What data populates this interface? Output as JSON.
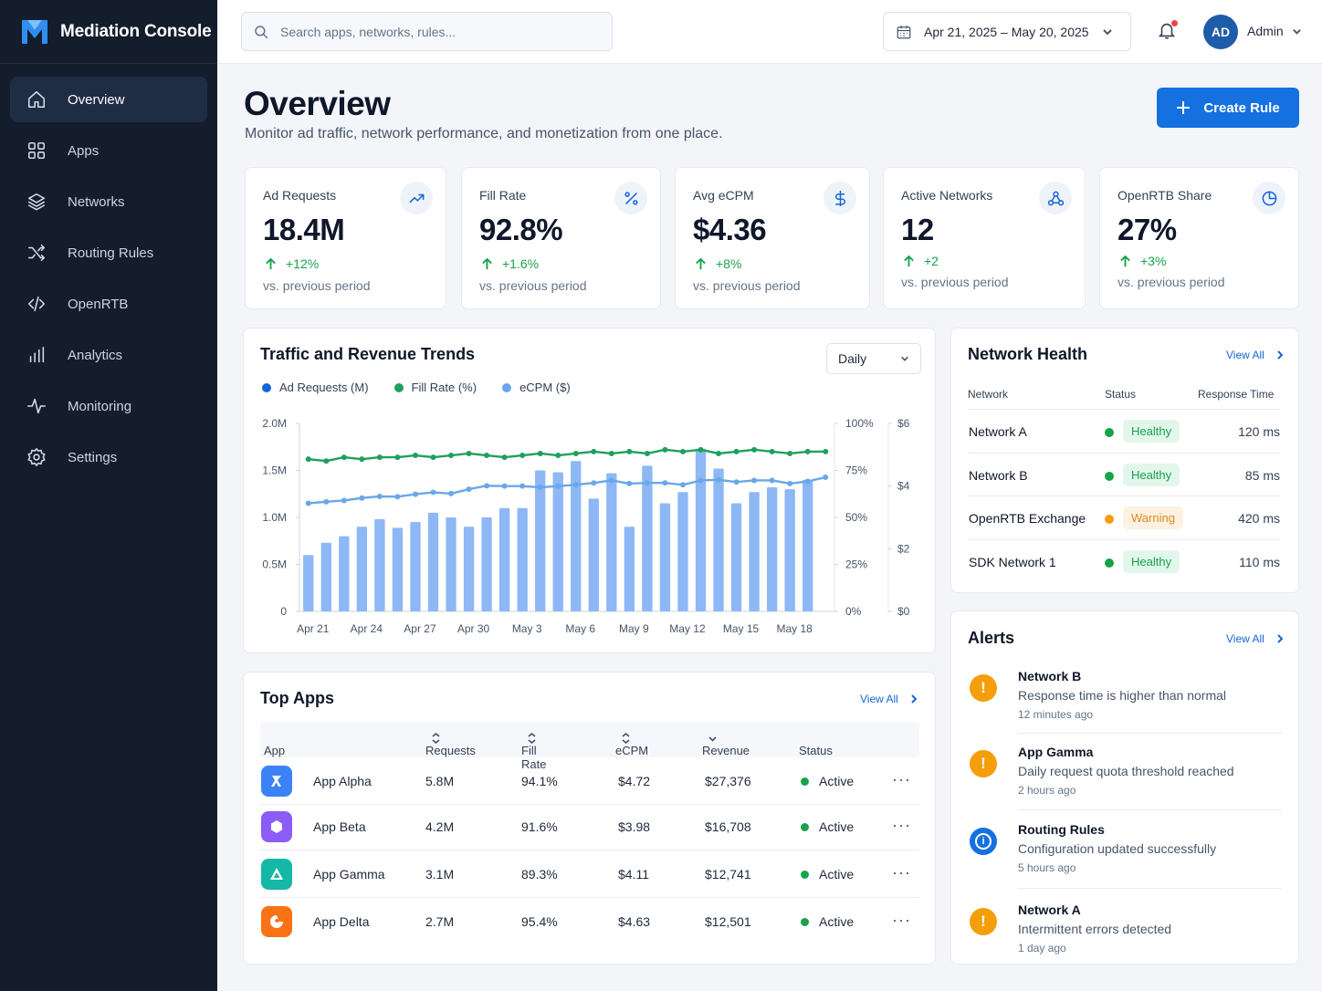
{
  "app": {
    "title": "Mediation Console"
  },
  "sidebar": {
    "items": [
      {
        "label": "Overview",
        "icon": "home-icon",
        "active": true
      },
      {
        "label": "Apps",
        "icon": "grid-icon"
      },
      {
        "label": "Networks",
        "icon": "layers-icon"
      },
      {
        "label": "Routing Rules",
        "icon": "shuffle-icon"
      },
      {
        "label": "OpenRTB",
        "icon": "code-icon"
      },
      {
        "label": "Analytics",
        "icon": "bar-chart-icon"
      },
      {
        "label": "Monitoring",
        "icon": "pulse-icon"
      },
      {
        "label": "Settings",
        "icon": "gear-icon"
      }
    ]
  },
  "topbar": {
    "search_placeholder": "Search apps, networks, rules...",
    "date_range": "Apr 21, 2025 – May 20, 2025",
    "avatar_initials": "AD",
    "user_name": "Admin"
  },
  "header": {
    "title": "Overview",
    "subtitle": "Monitor ad traffic, network performance, and monetization from one place.",
    "create_label": "Create Rule"
  },
  "kpis": [
    {
      "label": "Ad Requests",
      "value": "18.4M",
      "delta": "+12%",
      "vs": "vs. previous period",
      "icon": "trend-up-icon"
    },
    {
      "label": "Fill Rate",
      "value": "92.8%",
      "delta": "+1.6%",
      "vs": "vs. previous period",
      "icon": "percent-icon"
    },
    {
      "label": "Avg eCPM",
      "value": "$4.36",
      "delta": "+8%",
      "vs": "vs. previous period",
      "icon": "dollar-icon"
    },
    {
      "label": "Active Networks",
      "value": "12",
      "delta": "+2",
      "vs": "vs. previous period",
      "icon": "network-icon"
    },
    {
      "label": "OpenRTB Share",
      "value": "27%",
      "delta": "+3%",
      "vs": "vs. previous period",
      "icon": "pie-icon"
    }
  ],
  "trends": {
    "title": "Traffic and Revenue Trends",
    "granularity": "Daily",
    "colors": {
      "requests": "#8db8f5",
      "fill": "#1fa05a",
      "ecpm": "#6aa7e8"
    }
  },
  "chart_data": {
    "type": "bar",
    "title": "Traffic and Revenue Trends",
    "categories": [
      "Apr 21",
      "Apr 22",
      "Apr 23",
      "Apr 24",
      "Apr 25",
      "Apr 26",
      "Apr 27",
      "Apr 28",
      "Apr 29",
      "Apr 30",
      "May 1",
      "May 2",
      "May 3",
      "May 4",
      "May 5",
      "May 6",
      "May 7",
      "May 8",
      "May 9",
      "May 10",
      "May 11",
      "May 12",
      "May 13",
      "May 14",
      "May 15",
      "May 16",
      "May 17",
      "May 18",
      "May 19",
      "May 20"
    ],
    "x_tick_labels": [
      "Apr 21",
      "Apr 24",
      "Apr 27",
      "Apr 30",
      "May 3",
      "May 6",
      "May 9",
      "May 12",
      "May 15",
      "May 18"
    ],
    "series": [
      {
        "name": "Ad Requests (M)",
        "type": "bar",
        "axis": "left",
        "values": [
          0.6,
          0.73,
          0.8,
          0.9,
          0.98,
          0.89,
          0.95,
          1.05,
          1.0,
          0.9,
          1.0,
          1.1,
          1.1,
          1.5,
          1.48,
          1.6,
          1.2,
          1.47,
          0.9,
          1.55,
          1.15,
          1.27,
          1.73,
          1.52,
          1.15,
          1.27,
          1.32,
          1.3,
          1.4,
          null
        ]
      },
      {
        "name": "Fill Rate (%)",
        "type": "line",
        "axis": "right-pct",
        "values": [
          81,
          80,
          82,
          81,
          82,
          82,
          83,
          82,
          83,
          84,
          83,
          82,
          83,
          84,
          83,
          84,
          85,
          84,
          85,
          84,
          86,
          85,
          86,
          84,
          85,
          86,
          85,
          84,
          85,
          85
        ]
      },
      {
        "name": "eCPM ($)",
        "type": "line",
        "axis": "right-dollar",
        "values": [
          3.45,
          3.5,
          3.54,
          3.62,
          3.67,
          3.66,
          3.74,
          3.8,
          3.76,
          3.9,
          4.01,
          4.0,
          4.0,
          3.96,
          4.0,
          4.04,
          4.1,
          4.18,
          4.08,
          4.1,
          4.1,
          4.04,
          4.18,
          4.2,
          4.13,
          4.18,
          4.18,
          4.08,
          4.15,
          4.28
        ]
      }
    ],
    "y_left": {
      "ticks": [
        "0",
        "0.5M",
        "1.0M",
        "1.5M",
        "2.0M"
      ],
      "min": 0,
      "max": 2.0
    },
    "y_right_pct": {
      "ticks": [
        "0%",
        "25%",
        "50%",
        "75%",
        "100%"
      ],
      "min": 0,
      "max": 100
    },
    "y_right_dollar": {
      "ticks": [
        "$0",
        "$2",
        "$4",
        "$6"
      ],
      "min": 0,
      "max": 6
    },
    "legend": "top-left",
    "grid": false
  },
  "network_health": {
    "title": "Network Health",
    "view_all": "View All",
    "columns": [
      "Network",
      "Status",
      "Response Time"
    ],
    "rows": [
      {
        "network": "Network A",
        "status": "Healthy",
        "response": "120 ms",
        "level": "ok"
      },
      {
        "network": "Network B",
        "status": "Healthy",
        "response": "85 ms",
        "level": "ok"
      },
      {
        "network": "OpenRTB Exchange",
        "status": "Warning",
        "response": "420 ms",
        "level": "warn"
      },
      {
        "network": "SDK Network 1",
        "status": "Healthy",
        "response": "110 ms",
        "level": "ok"
      }
    ]
  },
  "alerts": {
    "title": "Alerts",
    "view_all": "View All",
    "items": [
      {
        "title": "Network B",
        "desc": "Response time is higher than normal",
        "time": "12 minutes ago",
        "kind": "warning-icon"
      },
      {
        "title": "App Gamma",
        "desc": "Daily request quota threshold reached",
        "time": "2 hours ago",
        "kind": "warning-icon"
      },
      {
        "title": "Routing Rules",
        "desc": "Configuration updated successfully",
        "time": "5 hours ago",
        "kind": "info-icon"
      },
      {
        "title": "Network A",
        "desc": "Intermittent errors detected",
        "time": "1 day ago",
        "kind": "warning-icon"
      }
    ]
  },
  "top_apps": {
    "title": "Top Apps",
    "view_all": "View All",
    "columns": [
      "App",
      "Requests",
      "Fill Rate",
      "eCPM",
      "Revenue",
      "Status"
    ],
    "rows": [
      {
        "app": "App Alpha",
        "requests": "5.8M",
        "fill": "94.1%",
        "ecpm": "$4.72",
        "revenue": "$27,376",
        "status": "Active",
        "color": "#3b82f6"
      },
      {
        "app": "App Beta",
        "requests": "4.2M",
        "fill": "91.6%",
        "ecpm": "$3.98",
        "revenue": "$16,708",
        "status": "Active",
        "color": "#8b5cf6"
      },
      {
        "app": "App Gamma",
        "requests": "3.1M",
        "fill": "89.3%",
        "ecpm": "$4.11",
        "revenue": "$12,741",
        "status": "Active",
        "color": "#14b8a6"
      },
      {
        "app": "App Delta",
        "requests": "2.7M",
        "fill": "95.4%",
        "ecpm": "$4.63",
        "revenue": "$12,501",
        "status": "Active",
        "color": "#f97316"
      }
    ]
  }
}
